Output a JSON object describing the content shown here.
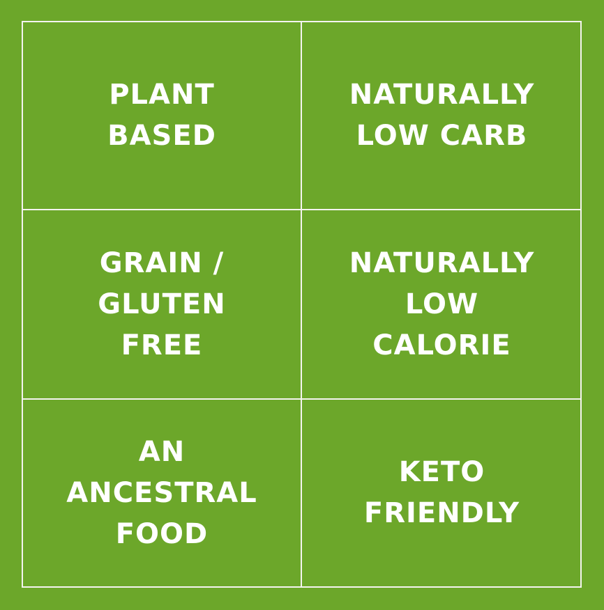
{
  "colors": {
    "background": "#6ca72a",
    "text": "#ffffff",
    "lines": "#f4f4f0"
  },
  "cells": [
    {
      "text": "PLANT\nBASED"
    },
    {
      "text": "NATURALLY\nLOW CARB"
    },
    {
      "text": "GRAIN /\nGLUTEN\nFREE"
    },
    {
      "text": "NATURALLY\nLOW\nCALORIE"
    },
    {
      "text": "AN\nANCESTRAL\nFOOD"
    },
    {
      "text": "KETO\nFRIENDLY"
    }
  ]
}
